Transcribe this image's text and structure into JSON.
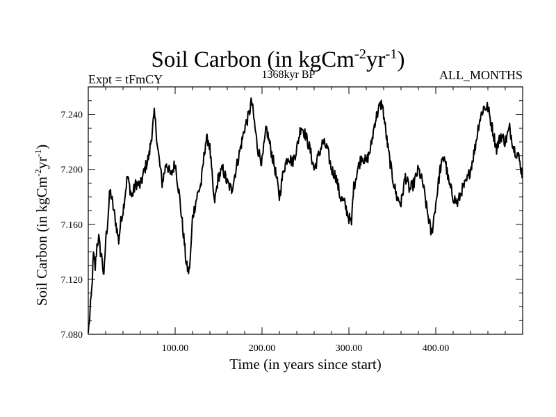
{
  "header": {
    "title_main": "Soil Carbon (in kgCm",
    "title_exp1": "-2",
    "title_mid": "yr",
    "title_exp2": "-1",
    "title_end": ")",
    "left_label": "Expt = tFmCY",
    "center_label": "1368kyr BP",
    "right_label": "ALL_MONTHS"
  },
  "axes": {
    "xlabel": "Time (in years since start)",
    "ylabel_main": "Soil Carbon (in kgCm",
    "ylabel_exp1": "-2",
    "ylabel_mid": "yr",
    "ylabel_exp2": "-1",
    "ylabel_end": ")"
  },
  "chart_data": {
    "type": "line",
    "title": "Soil Carbon (in kgCm-2yr-1)",
    "xlabel": "Time (in years since start)",
    "ylabel": "Soil Carbon (in kgCm-2yr-1)",
    "xlim": [
      0,
      500
    ],
    "ylim": [
      7.08,
      7.26
    ],
    "x_ticks": [
      100,
      200,
      300,
      400
    ],
    "x_tick_labels": [
      "100.00",
      "200.00",
      "300.00",
      "400.00"
    ],
    "y_ticks": [
      7.08,
      7.12,
      7.16,
      7.2,
      7.24
    ],
    "y_tick_labels": [
      "7.080",
      "7.120",
      "7.160",
      "7.200",
      "7.240"
    ],
    "series": [
      {
        "name": "Soil Carbon",
        "x": [
          0,
          2,
          4,
          6,
          8,
          10,
          12,
          14,
          16,
          18,
          20,
          22,
          25,
          28,
          32,
          35,
          38,
          40,
          45,
          50,
          55,
          60,
          65,
          70,
          73,
          76,
          78,
          80,
          85,
          90,
          95,
          100,
          105,
          110,
          113,
          116,
          118,
          120,
          125,
          130,
          135,
          138,
          140,
          145,
          150,
          155,
          160,
          165,
          170,
          175,
          180,
          185,
          188,
          190,
          195,
          200,
          205,
          210,
          215,
          220,
          225,
          230,
          235,
          240,
          245,
          250,
          255,
          260,
          265,
          270,
          275,
          280,
          285,
          290,
          295,
          300,
          303,
          305,
          310,
          315,
          320,
          325,
          330,
          335,
          338,
          340,
          345,
          350,
          355,
          360,
          365,
          370,
          375,
          380,
          385,
          390,
          393,
          395,
          400,
          405,
          410,
          415,
          420,
          425,
          430,
          435,
          440,
          445,
          450,
          455,
          460,
          465,
          470,
          475,
          480,
          485,
          490,
          495,
          500
        ],
        "values": [
          7.081,
          7.095,
          7.112,
          7.138,
          7.128,
          7.145,
          7.15,
          7.14,
          7.135,
          7.12,
          7.148,
          7.16,
          7.185,
          7.175,
          7.16,
          7.148,
          7.165,
          7.17,
          7.195,
          7.18,
          7.19,
          7.188,
          7.2,
          7.21,
          7.225,
          7.24,
          7.23,
          7.215,
          7.19,
          7.205,
          7.195,
          7.205,
          7.18,
          7.15,
          7.13,
          7.125,
          7.14,
          7.165,
          7.18,
          7.19,
          7.22,
          7.222,
          7.215,
          7.175,
          7.195,
          7.2,
          7.19,
          7.185,
          7.2,
          7.215,
          7.23,
          7.24,
          7.25,
          7.24,
          7.215,
          7.205,
          7.23,
          7.215,
          7.2,
          7.18,
          7.2,
          7.21,
          7.205,
          7.215,
          7.232,
          7.225,
          7.215,
          7.2,
          7.21,
          7.22,
          7.215,
          7.2,
          7.195,
          7.18,
          7.175,
          7.165,
          7.16,
          7.185,
          7.2,
          7.21,
          7.205,
          7.215,
          7.235,
          7.245,
          7.248,
          7.24,
          7.215,
          7.195,
          7.18,
          7.175,
          7.195,
          7.185,
          7.19,
          7.2,
          7.19,
          7.17,
          7.16,
          7.152,
          7.175,
          7.2,
          7.21,
          7.19,
          7.18,
          7.175,
          7.185,
          7.19,
          7.2,
          7.215,
          7.235,
          7.245,
          7.245,
          7.23,
          7.215,
          7.225,
          7.22,
          7.23,
          7.215,
          7.21,
          7.195
        ]
      }
    ],
    "grid": false,
    "line_color": "#000000"
  }
}
